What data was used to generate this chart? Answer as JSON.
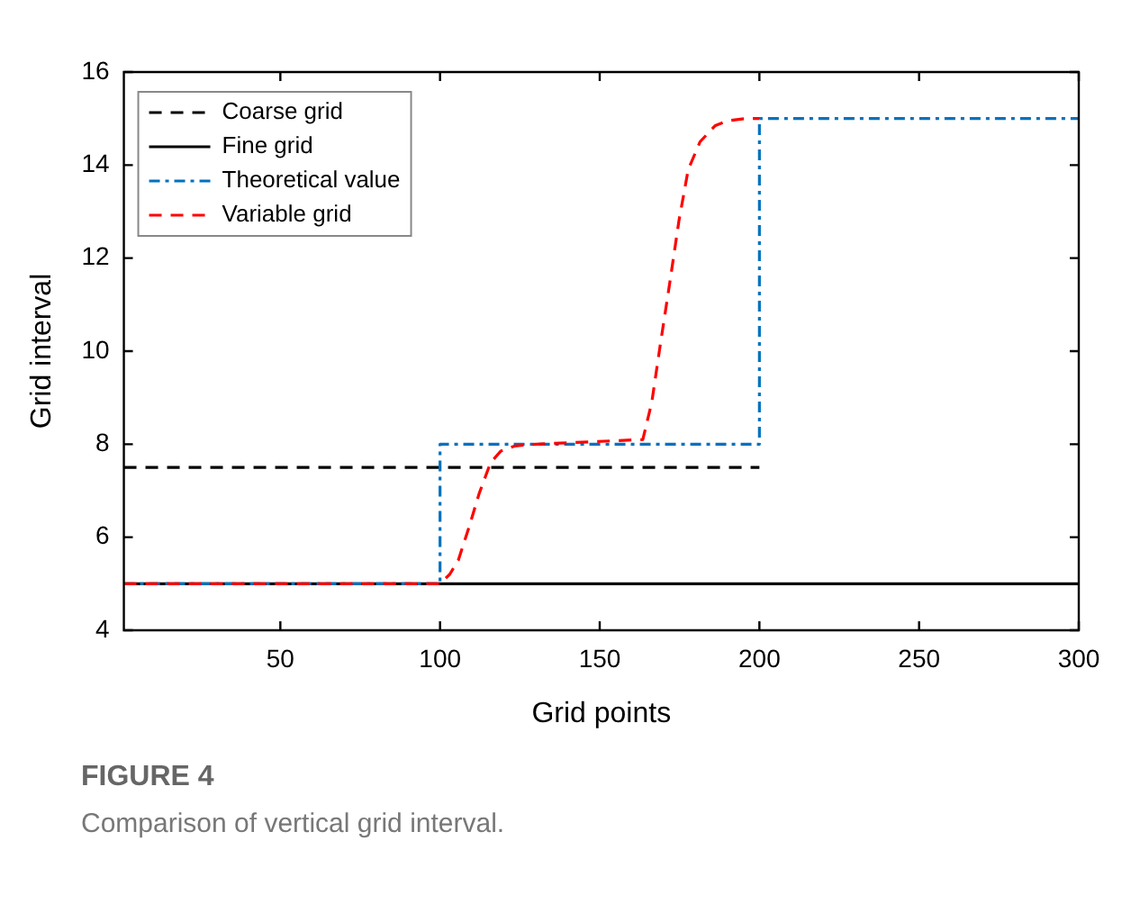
{
  "chart_data": {
    "type": "line",
    "xlabel": "Grid points",
    "ylabel": "Grid interval",
    "xlim": [
      1,
      300
    ],
    "ylim": [
      4,
      16
    ],
    "xticks": [
      50,
      100,
      150,
      200,
      250,
      300
    ],
    "yticks": [
      4,
      6,
      8,
      10,
      12,
      14,
      16
    ],
    "grid": false,
    "legend": "top left",
    "marker": "none",
    "annotations": [
      "FIGURE 4",
      "Comparison of vertical grid interval."
    ],
    "series": [
      {
        "name": "Coarse grid",
        "color": "#000000",
        "line_style": "dashed",
        "x": [
          1,
          200
        ],
        "values": [
          7.5,
          7.5
        ]
      },
      {
        "name": "Fine grid",
        "color": "#000000",
        "line_style": "solid",
        "x": [
          1,
          300
        ],
        "values": [
          5,
          5
        ]
      },
      {
        "name": "Theoretical value",
        "color": "#0072bd",
        "line_style": "dashdot",
        "x": [
          1,
          100,
          100,
          200,
          200,
          300
        ],
        "values": [
          5,
          5,
          8,
          8,
          15,
          15
        ]
      },
      {
        "name": "Variable grid",
        "color": "#ff0000",
        "line_style": "dashed",
        "x": [
          1,
          100,
          103,
          105.7,
          109,
          112.3,
          115.8,
          119,
          123.3,
          130,
          163.5,
          166.3,
          169.1,
          172,
          174.8,
          177.7,
          181.4,
          186.2,
          190,
          195.6,
          200
        ],
        "values": [
          5,
          5,
          5.2,
          5.5,
          6.2,
          6.95,
          7.6,
          7.85,
          7.96,
          8,
          8.1,
          8.9,
          10.2,
          11.5,
          12.8,
          13.9,
          14.5,
          14.85,
          14.95,
          15,
          15
        ]
      }
    ]
  }
}
